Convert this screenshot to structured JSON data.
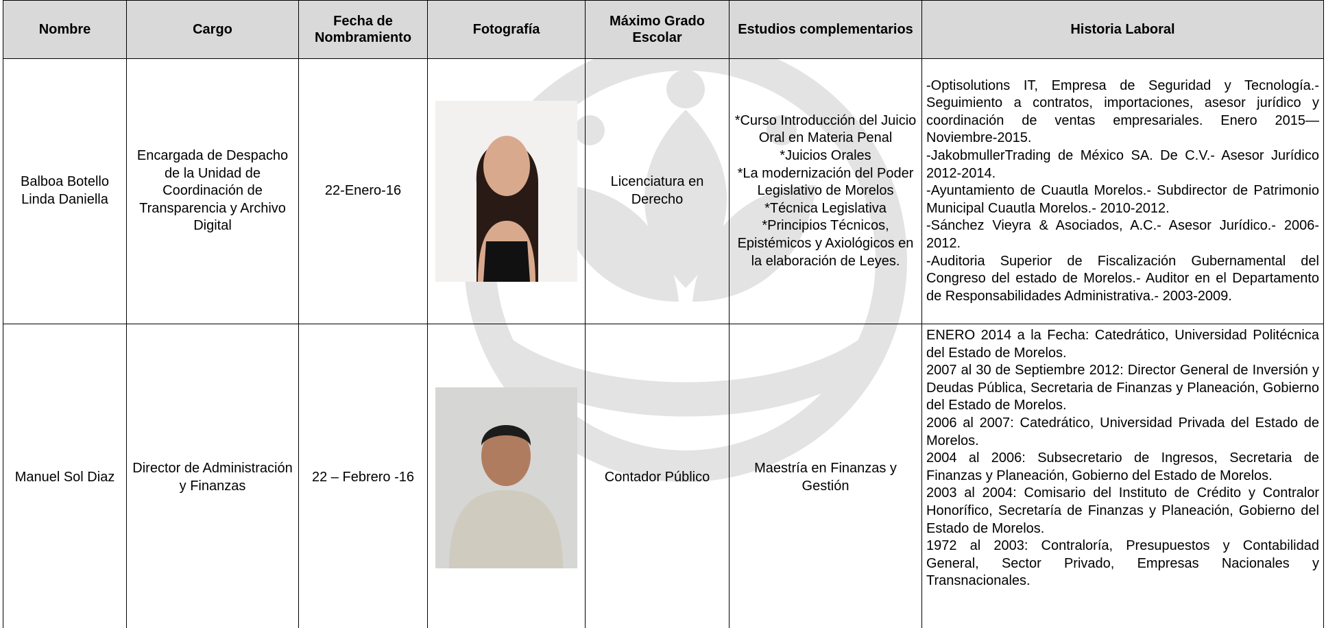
{
  "table": {
    "headers": [
      "Nombre",
      "Cargo",
      "Fecha de Nombramiento",
      "Fotografía",
      "Máximo Grado Escolar",
      "Estudios complementarios",
      "Historia Laboral"
    ],
    "rows": [
      {
        "nombre": "Balboa Botello Linda Daniella",
        "cargo": "Encargada de Despacho de la Unidad de Coordinación de Transparencia y Archivo Digital",
        "fecha": "22-Enero-16",
        "grado": "Licenciatura en Derecho",
        "estudios": [
          "*Curso Introducción del Juicio Oral en Materia Penal",
          "*Juicios Orales",
          "*La modernización del Poder Legislativo de Morelos",
          "*Técnica Legislativa",
          "*Principios Técnicos, Epistémicos y Axiológicos en la elaboración de Leyes."
        ],
        "historia": [
          "-Optisolutions IT, Empresa de Seguridad y Tecnología.- Seguimiento a contratos, importaciones, asesor jurídico y coordinación de ventas empresariales. Enero 2015—Noviembre-2015.",
          "-JakobmullerTrading de México SA. De C.V.- Asesor Jurídico 2012-2014.",
          "-Ayuntamiento de Cuautla Morelos.- Subdirector de Patrimonio Municipal Cuautla Morelos.- 2010-2012.",
          "-Sánchez Vieyra & Asociados, A.C.- Asesor Jurídico.- 2006-2012.",
          "-Auditoria Superior de Fiscalización Gubernamental del Congreso del estado de Morelos.- Auditor en el Departamento de Responsabilidades Administrativa.- 2003-2009."
        ]
      },
      {
        "nombre": "Manuel Sol Diaz",
        "cargo": "Director de Administración y Finanzas",
        "fecha": "22 – Febrero -16",
        "grado": "Contador Público",
        "estudios": [
          "Maestría en Finanzas y Gestión"
        ],
        "historia": [
          "ENERO 2014 a la Fecha: Catedrático, Universidad Politécnica del Estado de Morelos.",
          "2007 al 30 de Septiembre 2012: Director General de Inversión y Deudas Pública, Secretaria de Finanzas y Planeación, Gobierno del Estado de Morelos.",
          "2006 al 2007: Catedrático, Universidad Privada del Estado de Morelos.",
          "2004 al 2006: Subsecretario de Ingresos, Secretaria de Finanzas y Planeación, Gobierno del Estado de Morelos.",
          "2003 al 2004: Comisario del Instituto de Crédito y Contralor Honorífico, Secretaría de Finanzas y Planeación, Gobierno del Estado de Morelos.",
          "1972 al 2003: Contraloría, Presupuestos y Contabilidad General, Sector Privado, Empresas Nacionales y Transnacionales."
        ]
      }
    ]
  }
}
